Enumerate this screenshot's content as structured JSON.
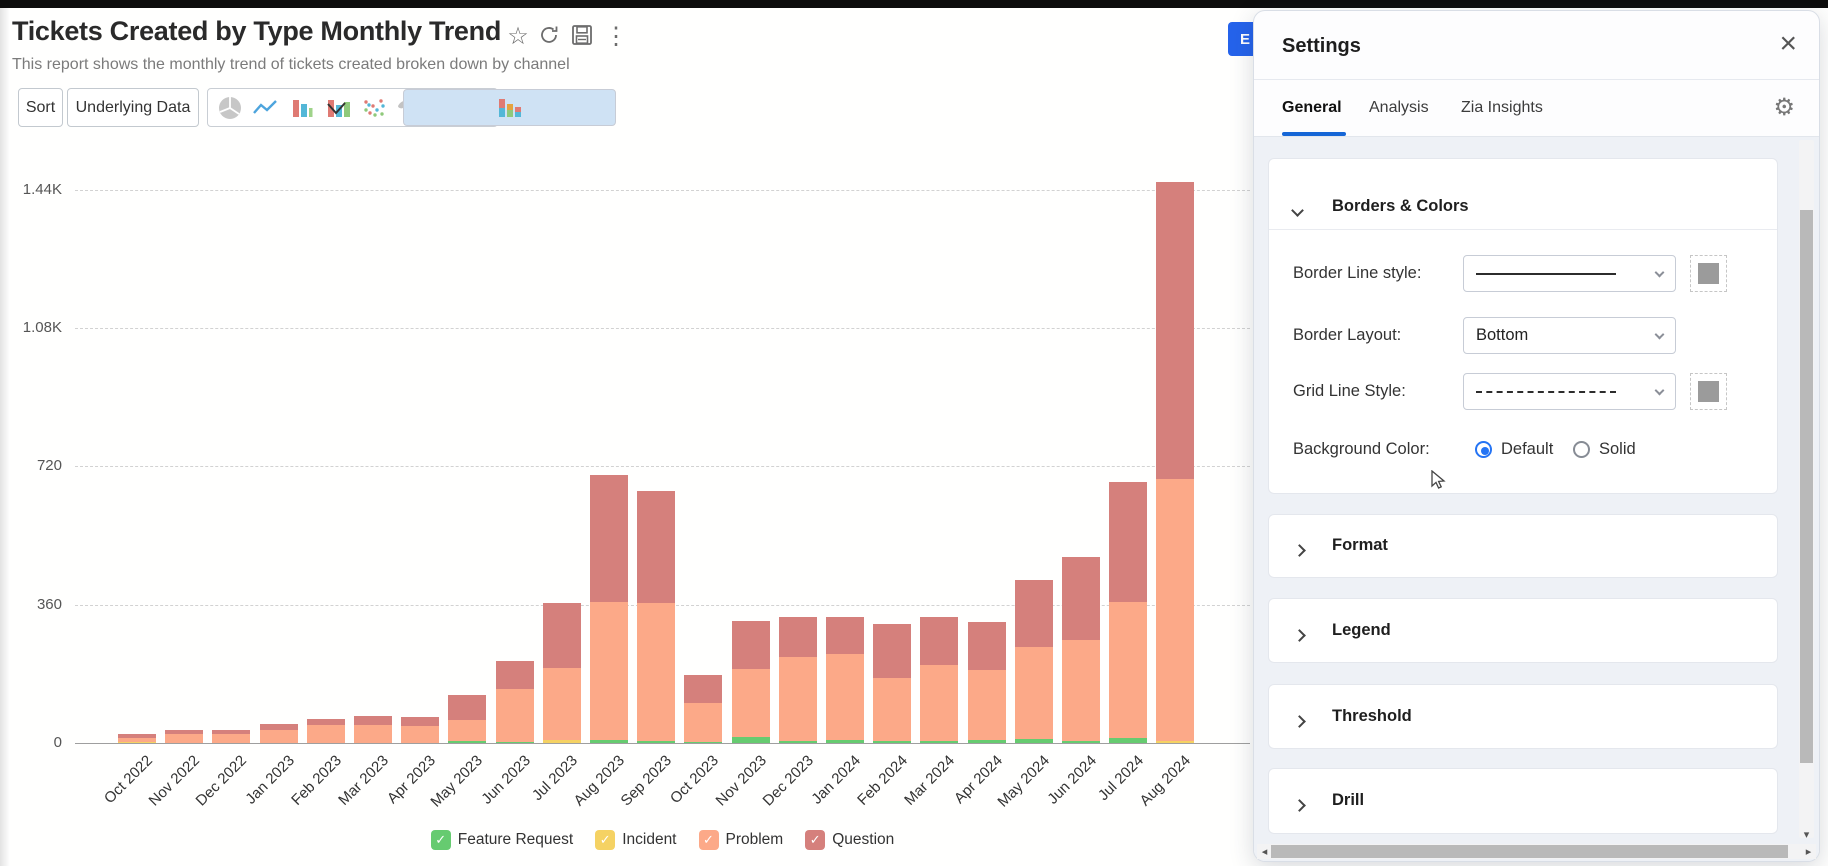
{
  "report": {
    "title": "Tickets Created by Type Monthly Trend",
    "subtitle": "This report shows the monthly trend of tickets created broken down by channel",
    "toolbar": {
      "sort_label": "Sort",
      "underlying_data_label": "Underlying Data",
      "chart_types": [
        "pie-chart",
        "line-chart",
        "bar-chart",
        "stacked-bar-chart",
        "combo-chart",
        "scatter-plot",
        "map-chart",
        "more-options"
      ],
      "selected_chart_type": "stacked-bar-chart"
    },
    "export_button_visible_text": "E"
  },
  "chart_data": {
    "type": "bar",
    "stacked": true,
    "categories": [
      "Oct 2022",
      "Nov 2022",
      "Dec 2022",
      "Jan 2023",
      "Feb 2023",
      "Mar 2023",
      "Apr 2023",
      "May 2023",
      "Jun 2023",
      "Jul 2023",
      "Aug 2023",
      "Sep 2023",
      "Oct 2023",
      "Nov 2023",
      "Dec 2023",
      "Jan 2024",
      "Feb 2024",
      "Mar 2024",
      "Apr 2024",
      "May 2024",
      "Jun 2024",
      "Jul 2024",
      "Aug 2024"
    ],
    "series": [
      {
        "name": "Feature Request",
        "color": "#66cb70",
        "values": [
          2,
          1,
          1,
          1,
          1,
          1,
          1,
          4,
          2,
          0,
          8,
          5,
          3,
          16,
          4,
          8,
          6,
          6,
          8,
          10,
          5,
          13,
          0
        ]
      },
      {
        "name": "Incident",
        "color": "#f5d263",
        "values": [
          1,
          0,
          0,
          0,
          0,
          0,
          0,
          0,
          0,
          8,
          0,
          0,
          0,
          0,
          0,
          0,
          0,
          0,
          0,
          0,
          0,
          0,
          6
        ]
      },
      {
        "name": "Problem",
        "color": "#fca988",
        "values": [
          10,
          22,
          23,
          34,
          45,
          45,
          43,
          57,
          139,
          187,
          359,
          360,
          100,
          177,
          220,
          223,
          164,
          198,
          182,
          240,
          262,
          355,
          680
        ]
      },
      {
        "name": "Question",
        "color": "#d5807c",
        "values": [
          10,
          10,
          11,
          15,
          17,
          24,
          24,
          63,
          72,
          170,
          330,
          290,
          75,
          125,
          105,
          98,
          140,
          124,
          124,
          174,
          218,
          311,
          775
        ]
      }
    ],
    "title": "Tickets Created by Type Monthly Trend",
    "xlabel": "",
    "ylabel": "",
    "y_ticks": [
      "0",
      "360",
      "720",
      "1.08K",
      "1.44K"
    ],
    "y_tick_values": [
      0,
      360,
      720,
      1080,
      1440
    ],
    "ylim": [
      0,
      1460
    ],
    "grid": "horizontal-dashed",
    "legend_position": "bottom"
  },
  "settings_panel": {
    "title": "Settings",
    "tabs": [
      {
        "label": "General",
        "active": true
      },
      {
        "label": "Analysis",
        "active": false
      },
      {
        "label": "Zia Insights",
        "active": false
      }
    ],
    "borders_colors": {
      "title": "Borders & Colors",
      "expanded": true,
      "rows": [
        {
          "label": "Border Line style:",
          "control": "line-style-select",
          "value": "solid-line",
          "swatch_color": "#9b9b9b"
        },
        {
          "label": "Border Layout:",
          "control": "select",
          "value": "Bottom"
        },
        {
          "label": "Grid Line Style:",
          "control": "line-style-select",
          "value": "dashed-line",
          "swatch_color": "#9b9b9b"
        },
        {
          "label": "Background Color:",
          "control": "radio-group",
          "options": [
            {
              "label": "Default",
              "selected": true
            },
            {
              "label": "Solid",
              "selected": false
            }
          ]
        }
      ]
    },
    "collapsed_sections": [
      "Format",
      "Legend",
      "Threshold",
      "Drill"
    ]
  },
  "icons": {
    "star": "☆",
    "kebab": "⋮",
    "gear": "⚙",
    "close": "×",
    "check": "✓",
    "arrow_down": "▾",
    "arrow_left": "◂",
    "arrow_right": "▸"
  }
}
